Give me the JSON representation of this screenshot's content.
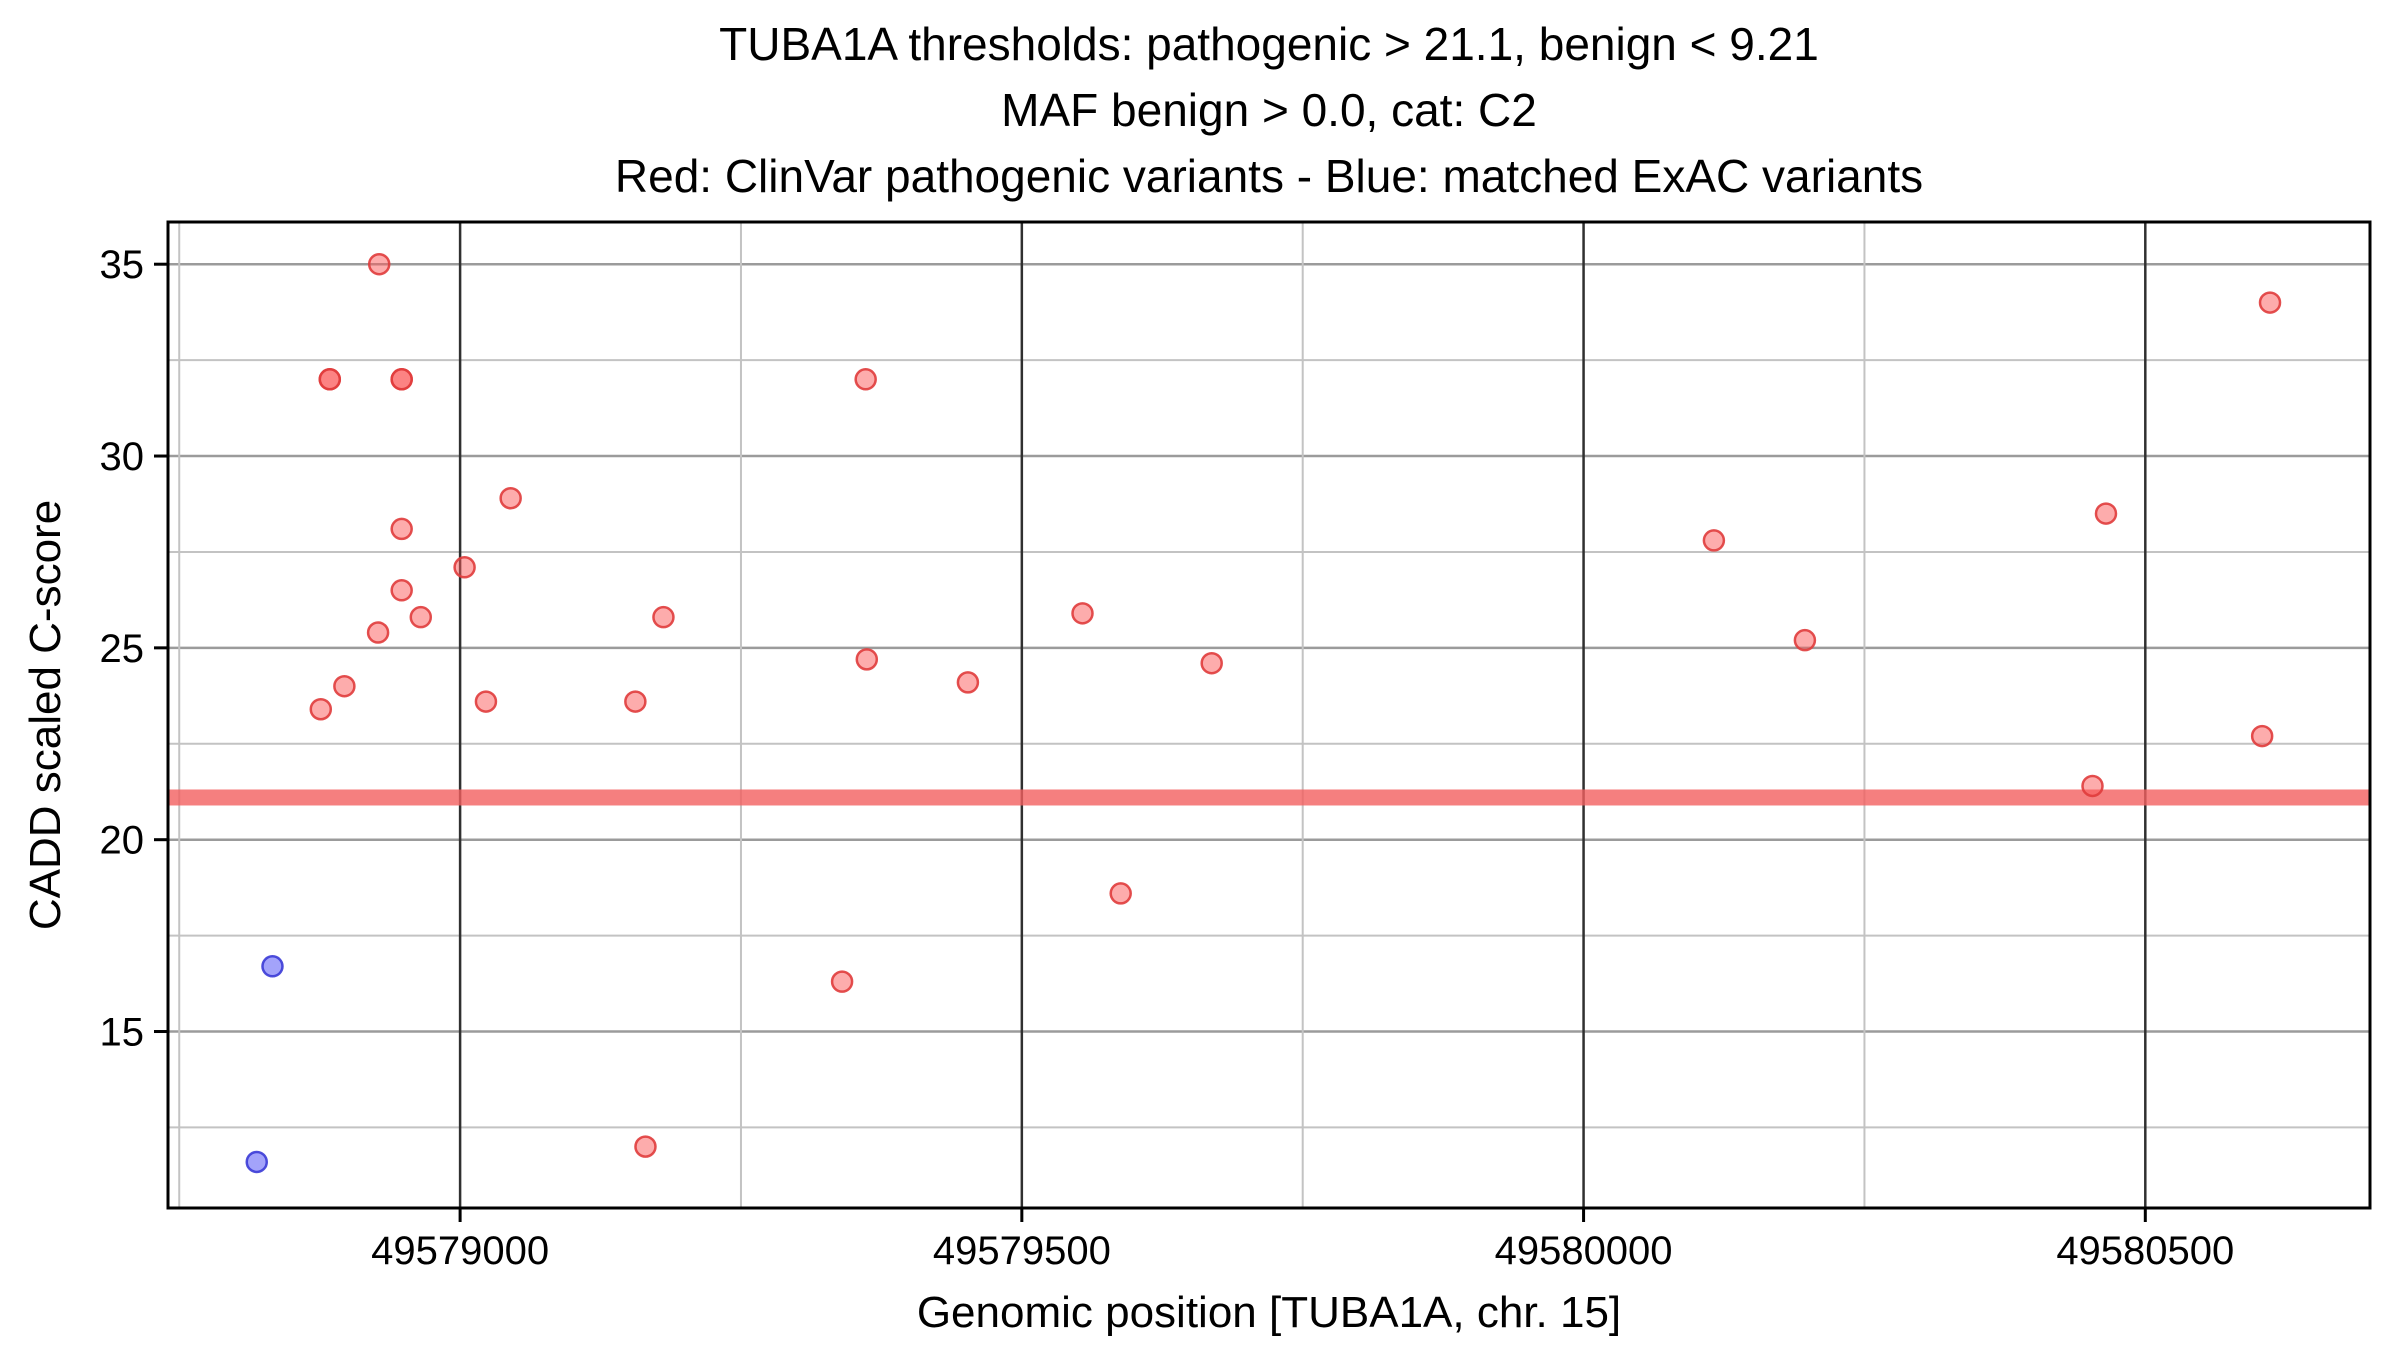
{
  "chart_data": {
    "type": "scatter",
    "title_lines": [
      "TUBA1A thresholds: pathogenic > 21.1, benign < 9.21",
      "MAF benign > 0.0, cat: C2",
      "Red: ClinVar pathogenic variants - Blue: matched ExAC variants"
    ],
    "xlabel": "Genomic position [TUBA1A, chr. 15]",
    "ylabel": "CADD scaled C-score",
    "xlim": [
      49578740,
      49580700
    ],
    "ylim": [
      10.4,
      36.1
    ],
    "x_ticks": [
      49579000,
      49579500,
      49580000,
      49580500
    ],
    "x_minor_ticks": [
      49578750,
      49579250,
      49579750,
      49580250,
      49580750
    ],
    "y_ticks": [
      15,
      20,
      25,
      30,
      35
    ],
    "y_minor_ticks": [
      12.5,
      17.5,
      22.5,
      27.5,
      32.5
    ],
    "grid": {
      "major_vertical_color": "#303030",
      "minor_vertical_color": "#c3c3c3",
      "major_horizontal_color": "#9b9b9b",
      "minor_horizontal_color": "#c3c3c3",
      "border_color": "#000000"
    },
    "threshold": {
      "value": 21.1,
      "color": "#f25f5f",
      "opacity": 0.8,
      "meaning": "pathogenic threshold"
    },
    "series": [
      {
        "name": "ClinVar pathogenic variants",
        "fill": "#fc5a5a",
        "stroke": "#e03c3c",
        "fill_opacity": 0.5,
        "points": [
          [
            49578928,
            35.0
          ],
          [
            49578884,
            32.0
          ],
          [
            49578884,
            32.0
          ],
          [
            49578948,
            32.0
          ],
          [
            49578948,
            32.0
          ],
          [
            49579361,
            32.0
          ],
          [
            49580611,
            34.0
          ],
          [
            49579045,
            28.9
          ],
          [
            49578948,
            28.1
          ],
          [
            49580465,
            28.5
          ],
          [
            49580116,
            27.8
          ],
          [
            49579004,
            27.1
          ],
          [
            49578948,
            26.5
          ],
          [
            49578965,
            25.8
          ],
          [
            49578927,
            25.4
          ],
          [
            49579181,
            25.8
          ],
          [
            49579554,
            25.9
          ],
          [
            49580197,
            25.2
          ],
          [
            49579362,
            24.7
          ],
          [
            49579452,
            24.1
          ],
          [
            49579669,
            24.6
          ],
          [
            49578897,
            24.0
          ],
          [
            49578876,
            23.4
          ],
          [
            49579023,
            23.6
          ],
          [
            49579156,
            23.6
          ],
          [
            49580604,
            22.7
          ],
          [
            49580453,
            21.4
          ],
          [
            49579588,
            18.6
          ],
          [
            49579340,
            16.3
          ],
          [
            49579165,
            12.0
          ]
        ]
      },
      {
        "name": "matched ExAC variants",
        "fill": "#5858f5",
        "stroke": "#3b3bd6",
        "fill_opacity": 0.55,
        "points": [
          [
            49578833,
            16.7
          ],
          [
            49578819,
            11.6
          ]
        ]
      }
    ]
  }
}
